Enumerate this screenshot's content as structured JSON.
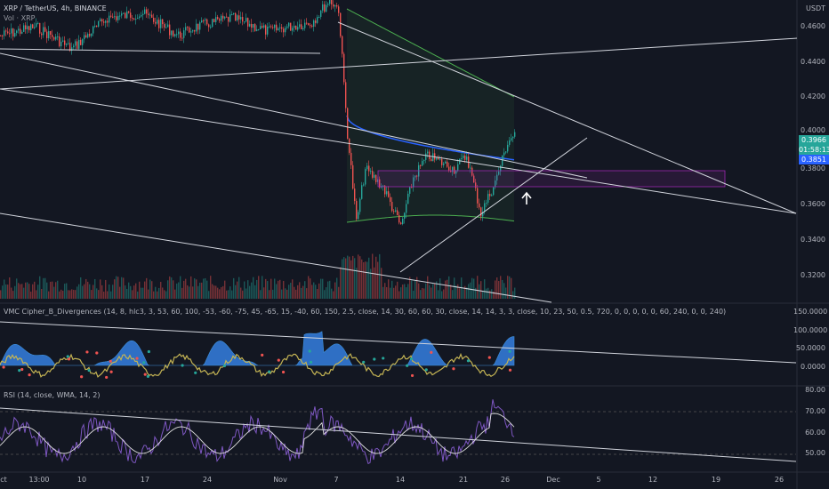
{
  "header": {
    "symbol_line": "XRP / TetherUS, 4h, BINANCE",
    "volume_line": "Vol · XRP"
  },
  "price_axis": {
    "currency": "USDT",
    "ticks": [
      "0.4600",
      "0.4400",
      "0.4200",
      "0.4000",
      "0.3800",
      "0.3600",
      "0.3400",
      "0.3200"
    ],
    "current_price": "0.3966",
    "countdown": "01:58:13",
    "vwap_value": "0.3851",
    "current_color": "#26a69a",
    "vwap_color": "#2962ff"
  },
  "cipher_pane": {
    "title": "VMC Cipher_B_Divergences (14, 8, hlc3, 3, 53, 60, 100, -53, -60, -75, 45, -65, 15, -40, 60, 150, 2.5, close, 14, 30, 60, 60, 30, close, 14, 14, 3, 3, close, 10, 23, 50, 0.5, 720, 0, 0, 0, 0, 0, 60, 240, 0, 0, 240)",
    "ticks": [
      "150.0000",
      "100.0000",
      "50.0000",
      "0.0000"
    ]
  },
  "rsi_pane": {
    "title": "RSI (14, close, WMA, 14, 2)",
    "ticks": [
      "80.00",
      "70.00",
      "60.00",
      "50.00"
    ]
  },
  "time_axis": {
    "labels": [
      "ct",
      "13:00",
      "10",
      "17",
      "24",
      "Nov",
      "7",
      "14",
      "21",
      "26",
      "Dec",
      "5",
      "12",
      "19",
      "26"
    ]
  },
  "colors": {
    "background": "#131722",
    "bull": "#26a69a",
    "bear": "#ef5350",
    "vwap": "#2962ff",
    "band": "#4caf50",
    "rsi": "#7e57c2",
    "zone": "#9c27b0",
    "cipher_fill": "#2f6fc4",
    "cipher_wave": "#c4b454"
  },
  "icons": {
    "signal": "up-arrow-icon"
  }
}
